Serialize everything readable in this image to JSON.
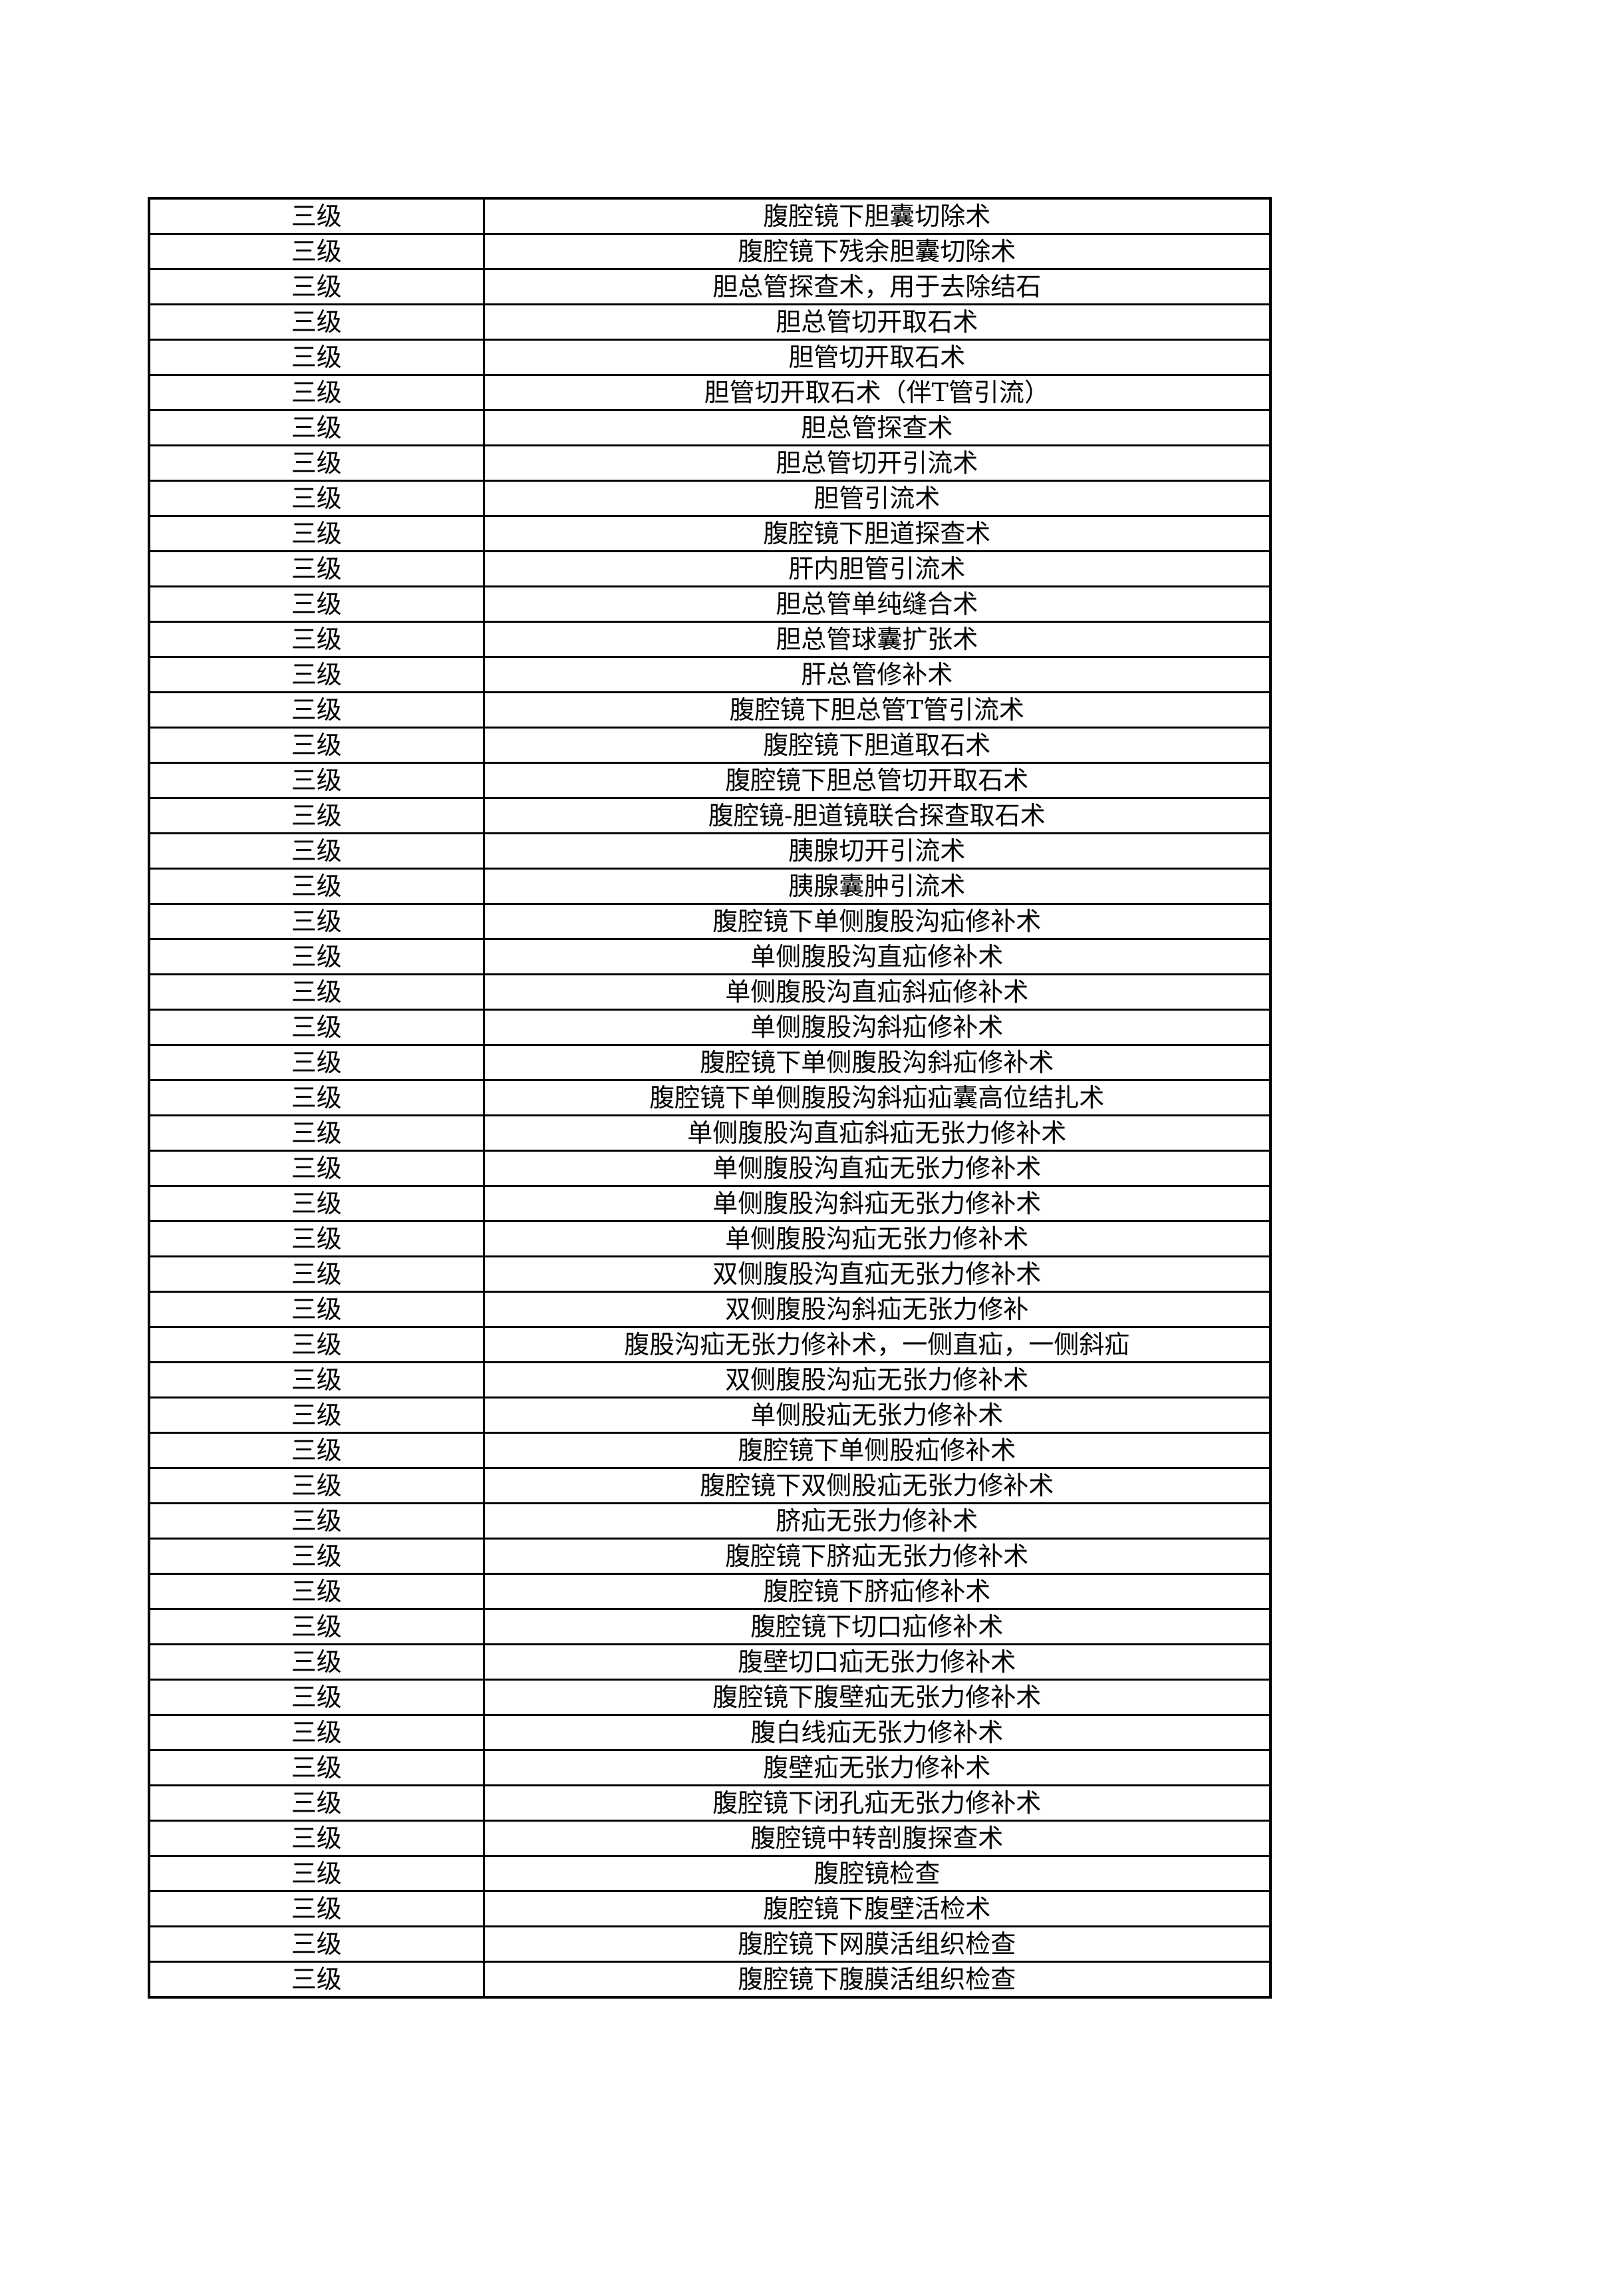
{
  "rows": [
    {
      "level": "三级",
      "name": "腹腔镜下胆囊切除术"
    },
    {
      "level": "三级",
      "name": "腹腔镜下残余胆囊切除术"
    },
    {
      "level": "三级",
      "name": "胆总管探查术，用于去除结石"
    },
    {
      "level": "三级",
      "name": "胆总管切开取石术"
    },
    {
      "level": "三级",
      "name": "胆管切开取石术"
    },
    {
      "level": "三级",
      "name": "胆管切开取石术（伴T管引流）"
    },
    {
      "level": "三级",
      "name": "胆总管探查术"
    },
    {
      "level": "三级",
      "name": "胆总管切开引流术"
    },
    {
      "level": "三级",
      "name": "胆管引流术"
    },
    {
      "level": "三级",
      "name": "腹腔镜下胆道探查术"
    },
    {
      "level": "三级",
      "name": "肝内胆管引流术"
    },
    {
      "level": "三级",
      "name": "胆总管单纯缝合术"
    },
    {
      "level": "三级",
      "name": "胆总管球囊扩张术"
    },
    {
      "level": "三级",
      "name": "肝总管修补术"
    },
    {
      "level": "三级",
      "name": "腹腔镜下胆总管T管引流术"
    },
    {
      "level": "三级",
      "name": "腹腔镜下胆道取石术"
    },
    {
      "level": "三级",
      "name": "腹腔镜下胆总管切开取石术"
    },
    {
      "level": "三级",
      "name": "腹腔镜-胆道镜联合探查取石术"
    },
    {
      "level": "三级",
      "name": "胰腺切开引流术"
    },
    {
      "level": "三级",
      "name": "胰腺囊肿引流术"
    },
    {
      "level": "三级",
      "name": "腹腔镜下单侧腹股沟疝修补术"
    },
    {
      "level": "三级",
      "name": "单侧腹股沟直疝修补术"
    },
    {
      "level": "三级",
      "name": "单侧腹股沟直疝斜疝修补术"
    },
    {
      "level": "三级",
      "name": "单侧腹股沟斜疝修补术"
    },
    {
      "level": "三级",
      "name": "腹腔镜下单侧腹股沟斜疝修补术"
    },
    {
      "level": "三级",
      "name": "腹腔镜下单侧腹股沟斜疝疝囊高位结扎术"
    },
    {
      "level": "三级",
      "name": "单侧腹股沟直疝斜疝无张力修补术"
    },
    {
      "level": "三级",
      "name": "单侧腹股沟直疝无张力修补术"
    },
    {
      "level": "三级",
      "name": "单侧腹股沟斜疝无张力修补术"
    },
    {
      "level": "三级",
      "name": "单侧腹股沟疝无张力修补术"
    },
    {
      "level": "三级",
      "name": "双侧腹股沟直疝无张力修补术"
    },
    {
      "level": "三级",
      "name": "双侧腹股沟斜疝无张力修补"
    },
    {
      "level": "三级",
      "name": "腹股沟疝无张力修补术，一侧直疝，一侧斜疝"
    },
    {
      "level": "三级",
      "name": "双侧腹股沟疝无张力修补术"
    },
    {
      "level": "三级",
      "name": "单侧股疝无张力修补术"
    },
    {
      "level": "三级",
      "name": "腹腔镜下单侧股疝修补术"
    },
    {
      "level": "三级",
      "name": "腹腔镜下双侧股疝无张力修补术"
    },
    {
      "level": "三级",
      "name": "脐疝无张力修补术"
    },
    {
      "level": "三级",
      "name": "腹腔镜下脐疝无张力修补术"
    },
    {
      "level": "三级",
      "name": "腹腔镜下脐疝修补术"
    },
    {
      "level": "三级",
      "name": "腹腔镜下切口疝修补术"
    },
    {
      "level": "三级",
      "name": "腹壁切口疝无张力修补术"
    },
    {
      "level": "三级",
      "name": "腹腔镜下腹壁疝无张力修补术"
    },
    {
      "level": "三级",
      "name": "腹白线疝无张力修补术"
    },
    {
      "level": "三级",
      "name": "腹壁疝无张力修补术"
    },
    {
      "level": "三级",
      "name": "腹腔镜下闭孔疝无张力修补术"
    },
    {
      "level": "三级",
      "name": "腹腔镜中转剖腹探查术"
    },
    {
      "level": "三级",
      "name": "腹腔镜检查"
    },
    {
      "level": "三级",
      "name": "腹腔镜下腹壁活检术"
    },
    {
      "level": "三级",
      "name": "腹腔镜下网膜活组织检查"
    },
    {
      "level": "三级",
      "name": "腹腔镜下腹膜活组织检查"
    }
  ]
}
